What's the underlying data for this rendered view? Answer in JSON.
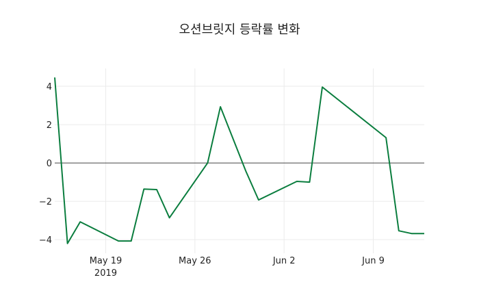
{
  "chart_data": {
    "type": "line",
    "title": "오션브릿지 등락률 변화",
    "xlabel": "",
    "ylabel": "",
    "x": [
      "2019-05-15",
      "2019-05-16",
      "2019-05-17",
      "2019-05-20",
      "2019-05-21",
      "2019-05-22",
      "2019-05-23",
      "2019-05-24",
      "2019-05-27",
      "2019-05-28",
      "2019-05-30",
      "2019-05-31",
      "2019-06-03",
      "2019-06-04",
      "2019-06-05",
      "2019-06-10",
      "2019-06-11",
      "2019-06-12",
      "2019-06-13"
    ],
    "series": [
      {
        "name": "등락률",
        "color": "#0a7d3e",
        "values": [
          4.46,
          -4.2,
          -3.07,
          -4.07,
          -4.07,
          -1.36,
          -1.39,
          -2.86,
          0.0,
          2.93,
          -0.43,
          -1.93,
          -0.96,
          -1.0,
          3.96,
          1.32,
          -3.54,
          -3.68,
          -3.68
        ]
      }
    ],
    "xlim": [
      "2019-05-15",
      "2019-06-13"
    ],
    "ylim": [
      -4.71,
      4.93
    ],
    "x_ticks": [
      {
        "date": "2019-05-19",
        "label": "May 19",
        "sublabel": "2019"
      },
      {
        "date": "2019-05-26",
        "label": "May 26"
      },
      {
        "date": "2019-06-02",
        "label": "Jun 2"
      },
      {
        "date": "2019-06-09",
        "label": "Jun 9"
      }
    ],
    "y_ticks": [
      {
        "value": 4,
        "label": "4"
      },
      {
        "value": 2,
        "label": "2"
      },
      {
        "value": 0,
        "label": "0"
      },
      {
        "value": -2,
        "label": "−2"
      },
      {
        "value": -4,
        "label": "−4"
      }
    ],
    "grid": true,
    "zero_line": true
  }
}
